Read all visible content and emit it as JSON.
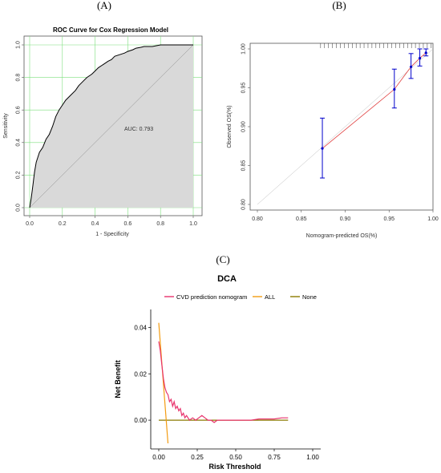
{
  "chart_data": [
    {
      "panel": "(A)",
      "type": "line",
      "title": "ROC Curve for Cox Regression Model",
      "xlabel": "1 - Specificity",
      "ylabel": "Sensitivity",
      "xlim": [
        0,
        1
      ],
      "ylim": [
        0,
        1
      ],
      "xticks": [
        "0.0",
        "0.2",
        "0.4",
        "0.6",
        "0.8",
        "1.0"
      ],
      "yticks": [
        "0.0",
        "0.2",
        "0.4",
        "0.6",
        "0.8",
        "1.0"
      ],
      "grid": true,
      "annotation": "AUC: 0.793",
      "series": [
        {
          "x": [
            0,
            0.01,
            0.02,
            0.03,
            0.04,
            0.05,
            0.06,
            0.08,
            0.1,
            0.12,
            0.14,
            0.16,
            0.18,
            0.2,
            0.22,
            0.25,
            0.28,
            0.3,
            0.33,
            0.35,
            0.38,
            0.4,
            0.42,
            0.45,
            0.48,
            0.5,
            0.52,
            0.55,
            0.58,
            0.6,
            0.63,
            0.65,
            0.68,
            0.7,
            0.75,
            0.8,
            0.85,
            0.9,
            0.95,
            1.0
          ],
          "y": [
            0,
            0.06,
            0.14,
            0.22,
            0.28,
            0.31,
            0.34,
            0.37,
            0.42,
            0.45,
            0.5,
            0.56,
            0.6,
            0.63,
            0.66,
            0.69,
            0.72,
            0.75,
            0.78,
            0.8,
            0.82,
            0.84,
            0.86,
            0.88,
            0.9,
            0.91,
            0.93,
            0.94,
            0.95,
            0.96,
            0.97,
            0.98,
            0.985,
            0.99,
            0.99,
            1.0,
            1.0,
            1.0,
            1.0,
            1.0
          ]
        }
      ]
    },
    {
      "panel": "(B)",
      "type": "scatter",
      "xlabel": "Nomogram-predicted OS(%)",
      "ylabel": "Observed OS(%)",
      "xlim": [
        0.8,
        1.0
      ],
      "ylim": [
        0.8,
        1.0
      ],
      "xticks": [
        "0.80",
        "0.85",
        "0.90",
        "0.95",
        "1.00"
      ],
      "yticks": [
        "0.80",
        "0.85",
        "0.90",
        "0.95",
        "1.00"
      ],
      "grid": false,
      "series": [
        {
          "x": [
            0.874,
            0.956,
            0.975,
            0.985,
            0.992
          ],
          "y": [
            0.872,
            0.948,
            0.977,
            0.988,
            0.995
          ],
          "lower": [
            0.834,
            0.924,
            0.962,
            0.978,
            0.991
          ],
          "upper": [
            0.911,
            0.974,
            0.994,
            1.0,
            1.0
          ]
        }
      ],
      "colors": {
        "points": "#0000cc",
        "line": "#e04040"
      }
    },
    {
      "panel": "(C)",
      "type": "line",
      "title": "DCA",
      "xlabel": "Risk Threshold",
      "ylabel": "Net Benefit",
      "xlim": [
        0,
        1
      ],
      "ylim": [
        -0.01,
        0.045
      ],
      "xticks": [
        "0.00",
        "0.25",
        "0.50",
        "0.75",
        "1.00"
      ],
      "yticks": [
        "0.00",
        "0.02",
        "0.04"
      ],
      "legend_position": "top",
      "series": [
        {
          "name": "CVD prediction nomogram",
          "color": "#e8336d",
          "x": [
            0,
            0.01,
            0.02,
            0.03,
            0.04,
            0.05,
            0.06,
            0.07,
            0.08,
            0.09,
            0.1,
            0.11,
            0.12,
            0.13,
            0.14,
            0.15,
            0.16,
            0.17,
            0.18,
            0.2,
            0.22,
            0.24,
            0.26,
            0.28,
            0.3,
            0.32,
            0.34,
            0.36,
            0.38,
            0.4,
            0.45,
            0.5,
            0.55,
            0.6,
            0.65,
            0.7,
            0.75,
            0.8,
            0.84
          ],
          "y": [
            0.034,
            0.03,
            0.024,
            0.018,
            0.014,
            0.012,
            0.011,
            0.008,
            0.009,
            0.006,
            0.008,
            0.005,
            0.006,
            0.004,
            0.005,
            0.002,
            0.003,
            0.001,
            0.002,
            0.0,
            0.001,
            0.0,
            0.001,
            0.002,
            0.001,
            0.0,
            0.0,
            -0.001,
            0.0,
            0.0,
            0.0,
            0.0,
            0.0,
            0.0,
            0.0005,
            0.0005,
            0.0005,
            0.001,
            0.001
          ]
        },
        {
          "name": "ALL",
          "color": "#f39c12",
          "x": [
            0.0,
            0.06
          ],
          "y": [
            0.042,
            -0.01
          ]
        },
        {
          "name": "None",
          "color": "#8b7a00",
          "x": [
            0.0,
            0.84
          ],
          "y": [
            0.0,
            0.0
          ]
        }
      ]
    }
  ]
}
